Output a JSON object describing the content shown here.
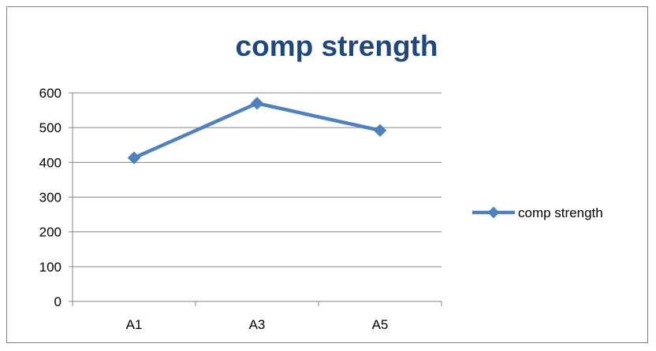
{
  "chart_data": {
    "type": "line",
    "title": "comp strength",
    "xlabel": "",
    "ylabel": "",
    "categories": [
      "A1",
      "A3",
      "A5"
    ],
    "series": [
      {
        "name": "comp strength",
        "values": [
          413,
          570,
          492
        ],
        "color": "#4f81bd"
      }
    ],
    "ylim": [
      0,
      600
    ],
    "yticks": [
      0,
      100,
      200,
      300,
      400,
      500,
      600
    ],
    "grid": "horizontal",
    "legend_position": "right",
    "marker": "diamond"
  }
}
